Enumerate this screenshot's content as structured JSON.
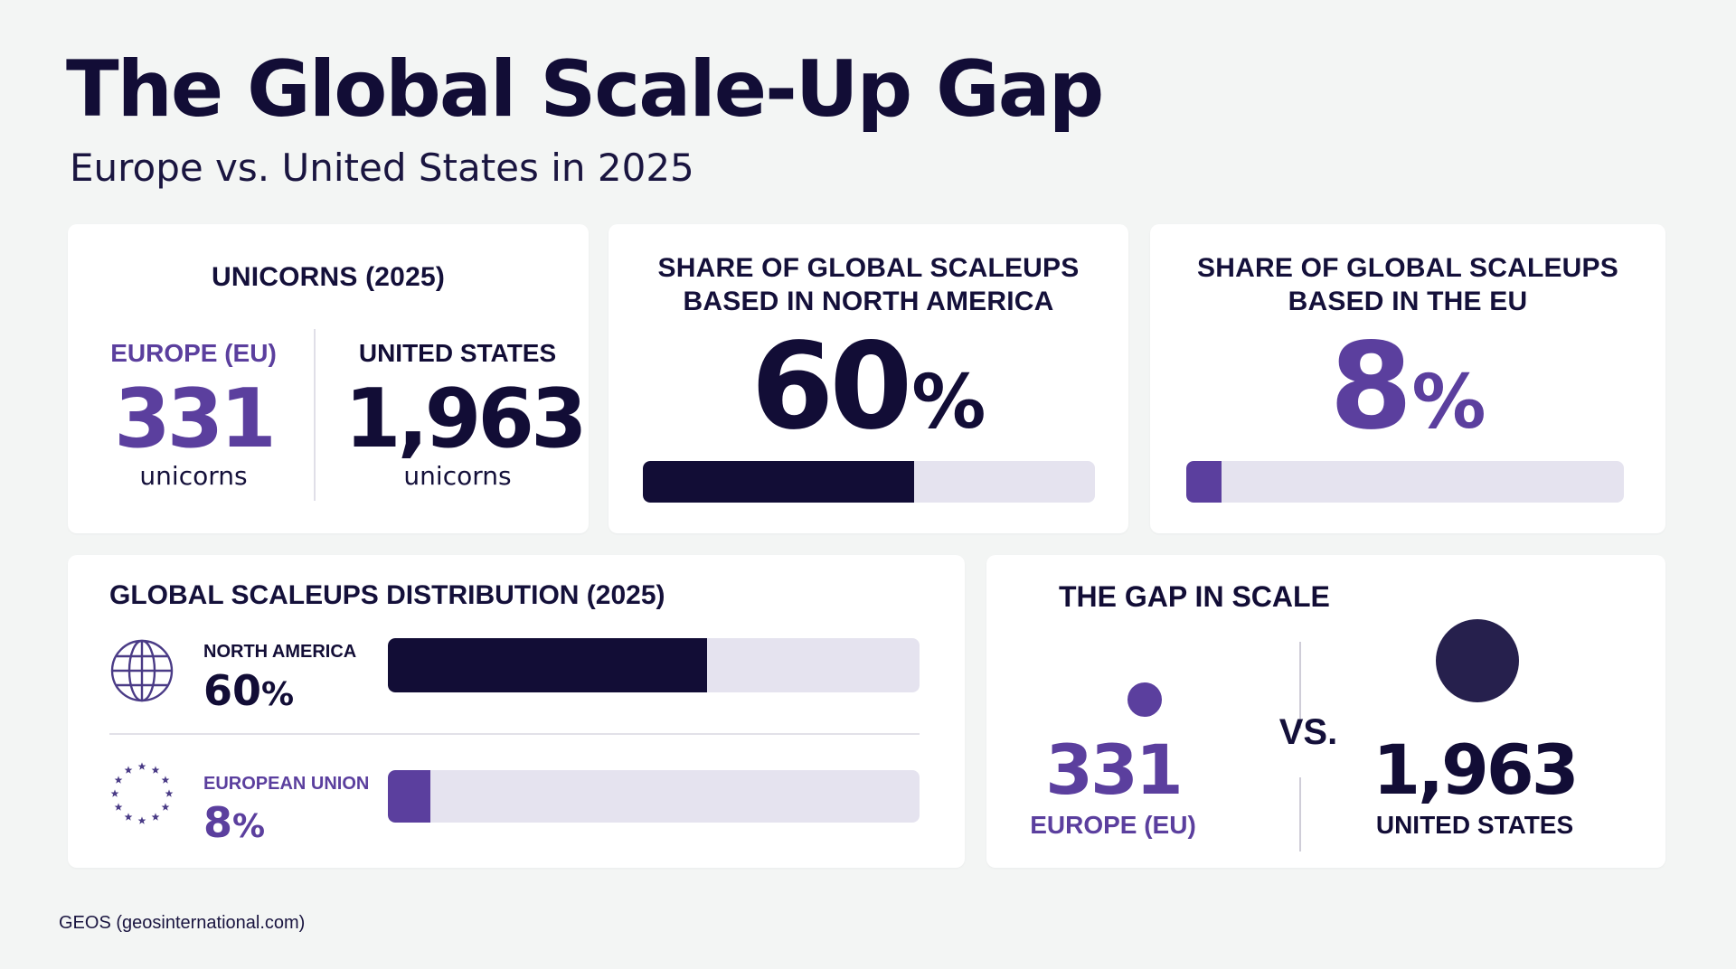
{
  "header": {
    "title": "The Global Scale-Up Gap",
    "subtitle": "Europe vs. United States in 2025"
  },
  "colors": {
    "navy": "#120d36",
    "purple": "#5b3f9e",
    "track": "#e5e3ef",
    "background": "#f3f5f4"
  },
  "unicorns_card": {
    "heading": "UNICORNS (2025)",
    "europe": {
      "label": "EUROPE (EU)",
      "value": "331",
      "unit": "unicorns"
    },
    "us": {
      "label": "UNITED STATES",
      "value": "1,963",
      "unit": "unicorns"
    }
  },
  "na_share_card": {
    "heading_line1": "SHARE OF GLOBAL SCALEUPS",
    "heading_line2": "BASED IN NORTH AMERICA",
    "value": "60",
    "percent_sign": "%",
    "bar_percent": 60
  },
  "eu_share_card": {
    "heading_line1": "SHARE OF GLOBAL SCALEUPS",
    "heading_line2": "BASED IN THE EU",
    "value": "8",
    "percent_sign": "%",
    "bar_percent": 8
  },
  "distribution_card": {
    "heading": "GLOBAL SCALEUPS DISTRIBUTION (2025)",
    "rows": [
      {
        "name": "NORTH AMERICA",
        "value": "60",
        "percent_sign": "%",
        "icon": "globe-icon",
        "bar_percent": 60
      },
      {
        "name": "EUROPEAN UNION",
        "value": "8",
        "percent_sign": "%",
        "icon": "eu-stars-icon",
        "bar_percent": 8
      }
    ]
  },
  "gap_card": {
    "heading": "THE GAP IN SCALE",
    "vs": "VS.",
    "europe": {
      "value": "331",
      "label": "EUROPE (EU)"
    },
    "us": {
      "value": "1,963",
      "label": "UNITED STATES"
    }
  },
  "source": "GEOS (geosinternational.com)",
  "chart_data": [
    {
      "type": "bar",
      "categories": [
        "EUROPE (EU)",
        "UNITED STATES"
      ],
      "values": [
        331,
        1963
      ],
      "title": "UNICORNS (2025)"
    },
    {
      "type": "bar",
      "categories": [
        "NORTH AMERICA"
      ],
      "values": [
        60
      ],
      "title": "SHARE OF GLOBAL SCALEUPS BASED IN NORTH AMERICA",
      "ylim": [
        0,
        100
      ]
    },
    {
      "type": "bar",
      "categories": [
        "EU"
      ],
      "values": [
        8
      ],
      "title": "SHARE OF GLOBAL SCALEUPS BASED IN THE EU",
      "ylim": [
        0,
        100
      ]
    },
    {
      "type": "bar",
      "categories": [
        "NORTH AMERICA",
        "EUROPEAN UNION"
      ],
      "values": [
        60,
        8
      ],
      "title": "GLOBAL SCALEUPS DISTRIBUTION (2025)",
      "ylim": [
        0,
        100
      ]
    },
    {
      "type": "scatter",
      "categories": [
        "EUROPE (EU)",
        "UNITED STATES"
      ],
      "values": [
        331,
        1963
      ],
      "title": "THE GAP IN SCALE"
    }
  ]
}
